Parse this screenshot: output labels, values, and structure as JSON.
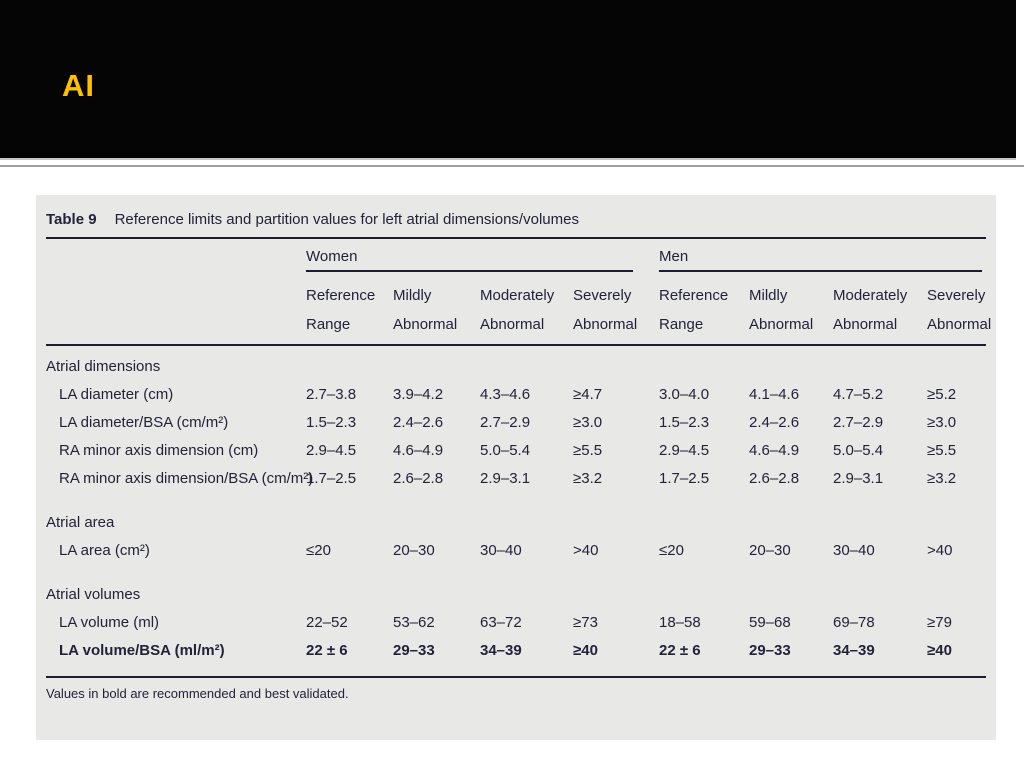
{
  "slide": {
    "title": "AI"
  },
  "colors": {
    "accent": "#FFC000",
    "banner_bg": "#050505",
    "table_bg": "#E8E8E6",
    "table_text": "#22223A"
  },
  "table": {
    "caption_label": "Table 9",
    "caption_text": "Reference limits and partition values for left atrial dimensions/volumes",
    "groups": [
      {
        "label": "Women"
      },
      {
        "label": "Men"
      }
    ],
    "column_headers": [
      "Reference Range",
      "Mildly Abnormal",
      "Moderately Abnormal",
      "Severely Abnormal",
      "Reference Range",
      "Mildly Abnormal",
      "Moderately Abnormal",
      "Severely Abnormal"
    ],
    "sections": [
      {
        "label": "Atrial dimensions",
        "rows": [
          {
            "label": "LA diameter (cm)",
            "values": [
              "2.7–3.8",
              "3.9–4.2",
              "4.3–4.6",
              "≥4.7",
              "3.0–4.0",
              "4.1–4.6",
              "4.7–5.2",
              "≥5.2"
            ]
          },
          {
            "label": "LA diameter/BSA (cm/m²)",
            "values": [
              "1.5–2.3",
              "2.4–2.6",
              "2.7–2.9",
              "≥3.0",
              "1.5–2.3",
              "2.4–2.6",
              "2.7–2.9",
              "≥3.0"
            ]
          },
          {
            "label": "RA minor axis dimension (cm)",
            "values": [
              "2.9–4.5",
              "4.6–4.9",
              "5.0–5.4",
              "≥5.5",
              "2.9–4.5",
              "4.6–4.9",
              "5.0–5.4",
              "≥5.5"
            ]
          },
          {
            "label": "RA minor axis dimension/BSA (cm/m²)",
            "values": [
              "1.7–2.5",
              "2.6–2.8",
              "2.9–3.1",
              "≥3.2",
              "1.7–2.5",
              "2.6–2.8",
              "2.9–3.1",
              "≥3.2"
            ]
          }
        ]
      },
      {
        "label": "Atrial area",
        "rows": [
          {
            "label": "LA area (cm²)",
            "values": [
              "≤20",
              "20–30",
              "30–40",
              ">40",
              "≤20",
              "20–30",
              "30–40",
              ">40"
            ]
          }
        ]
      },
      {
        "label": "Atrial volumes",
        "rows": [
          {
            "label": "LA volume (ml)",
            "values": [
              "22–52",
              "53–62",
              "63–72",
              "≥73",
              "18–58",
              "59–68",
              "69–78",
              "≥79"
            ]
          },
          {
            "label": "LA volume/BSA (ml/m²)",
            "bold": true,
            "values": [
              "22 ± 6",
              "29–33",
              "34–39",
              "≥40",
              "22 ± 6",
              "29–33",
              "34–39",
              "≥40"
            ]
          }
        ]
      }
    ],
    "footnote": "Values in bold are recommended and best validated."
  }
}
